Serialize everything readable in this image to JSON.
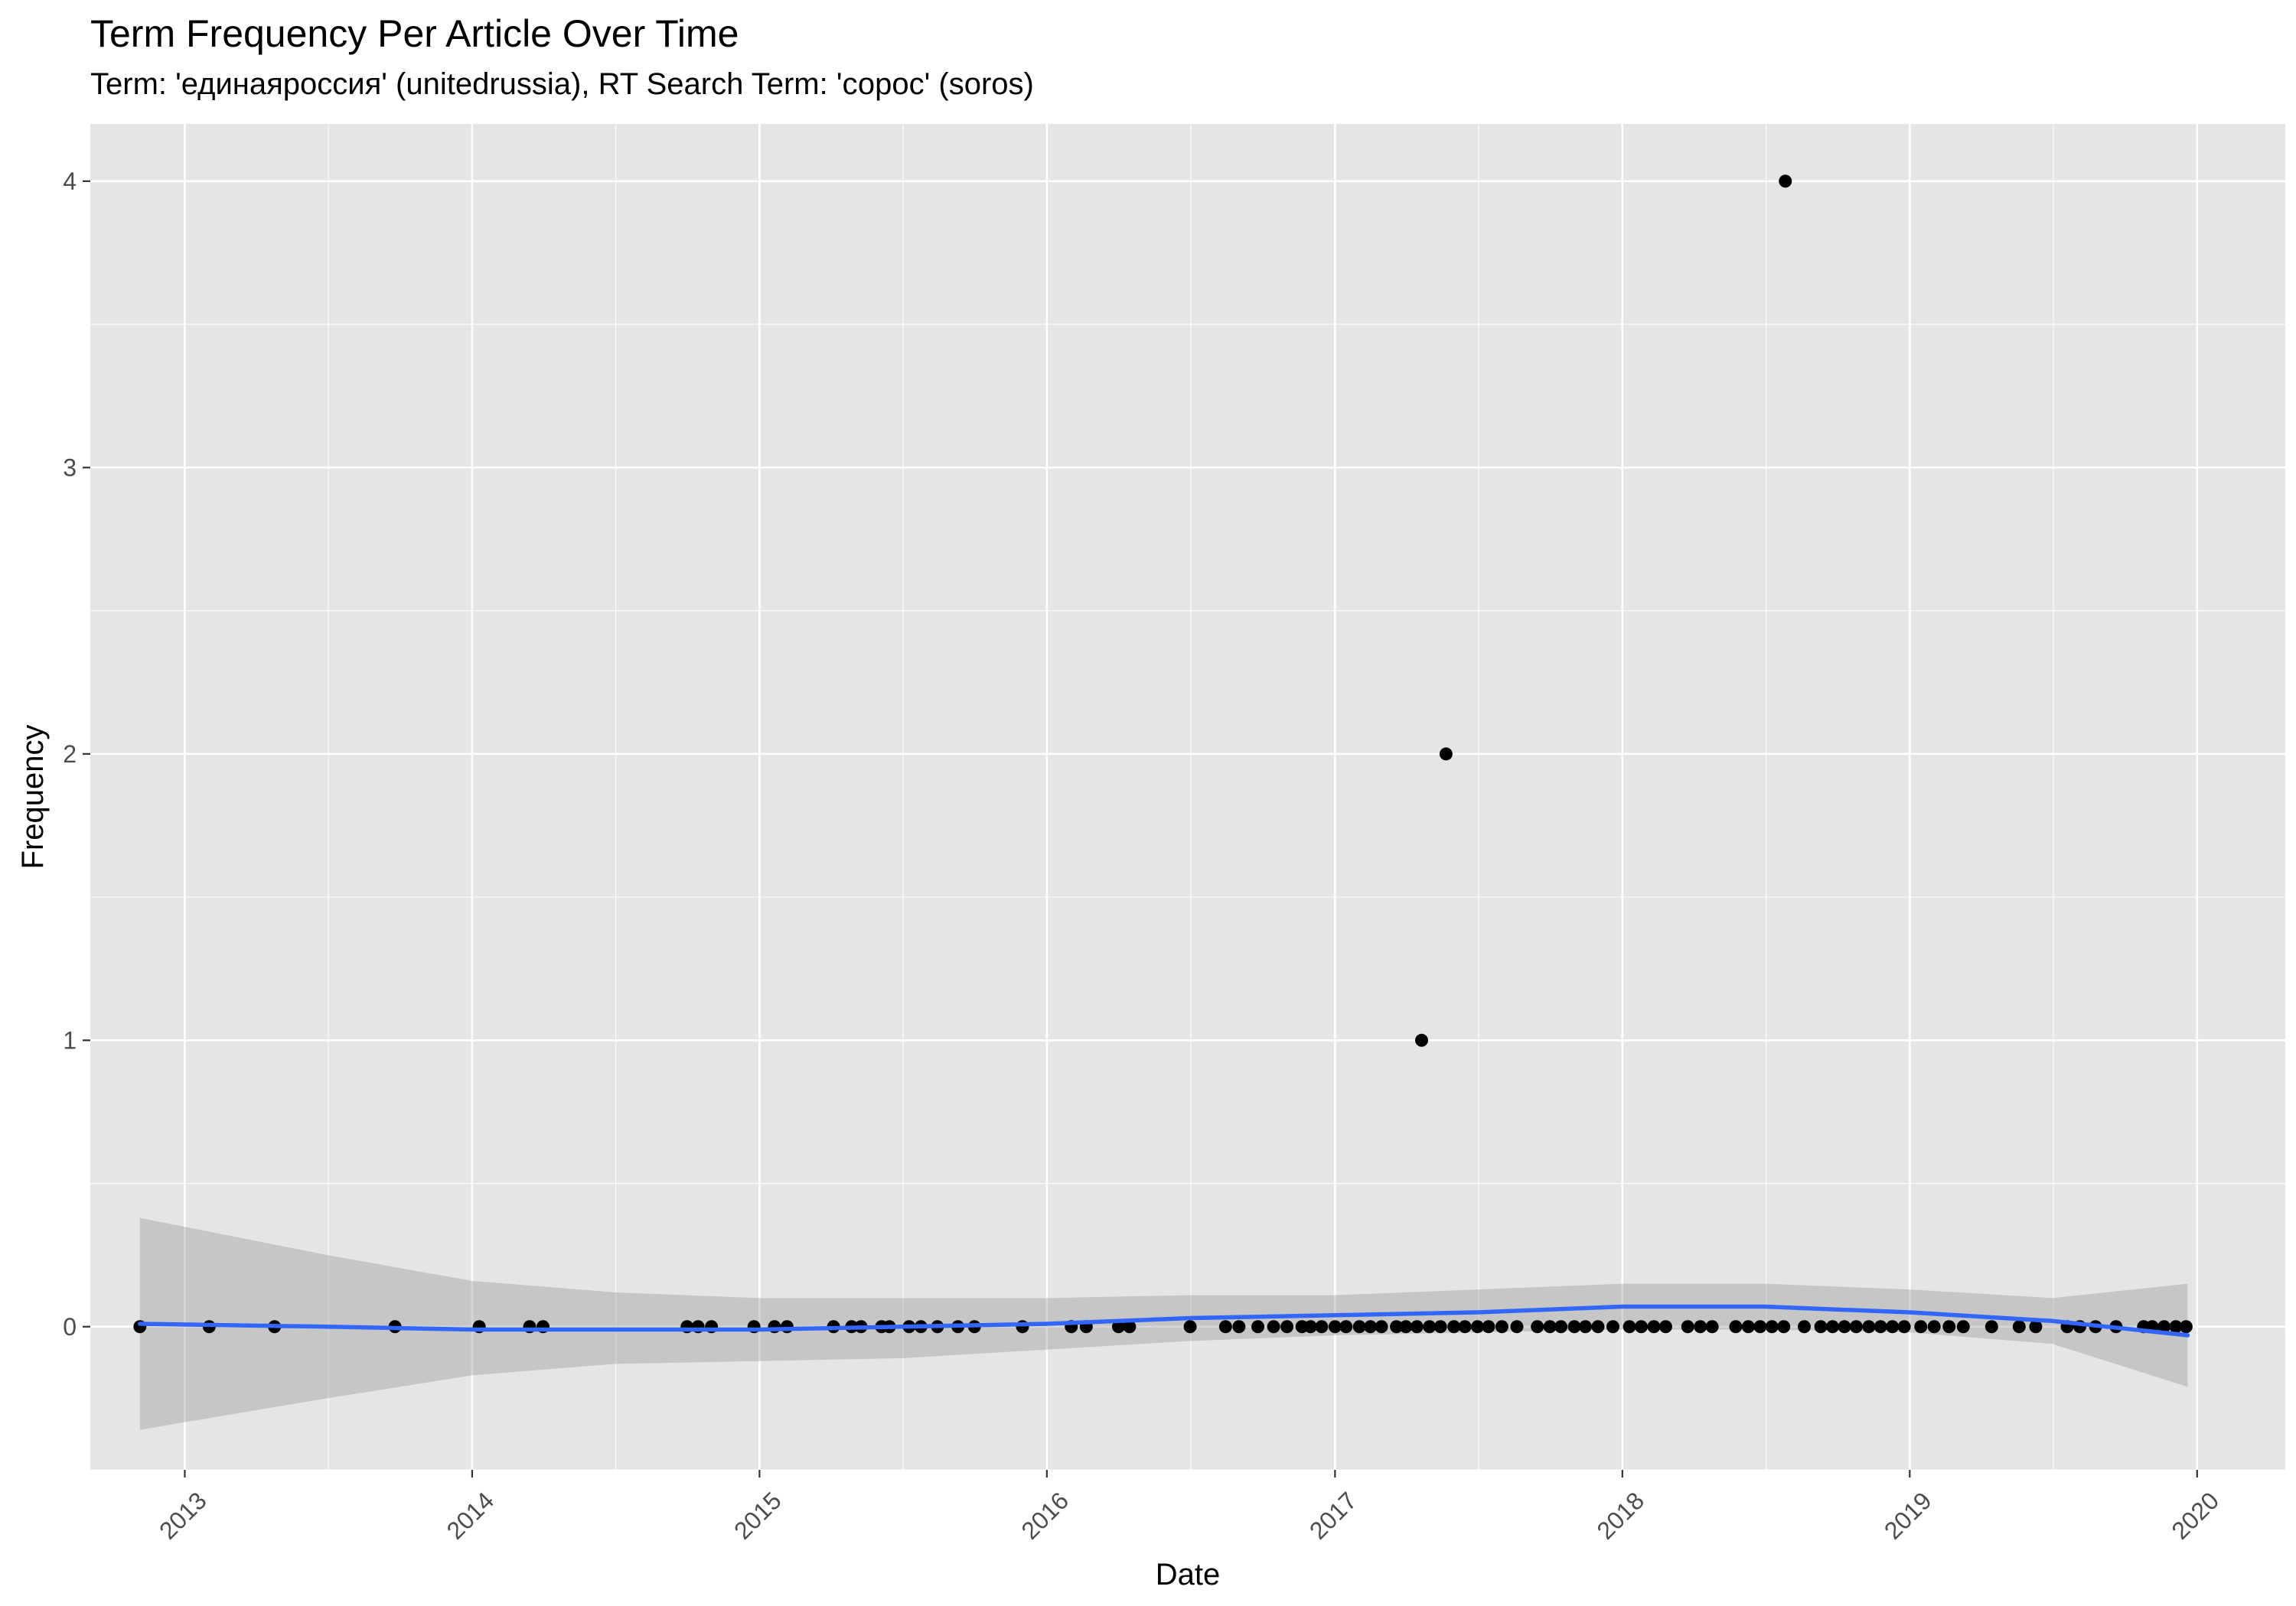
{
  "chart_data": {
    "type": "scatter",
    "title": "Term Frequency Per Article Over Time",
    "subtitle": "Term: 'единаяроссия' (unitedrussia), RT Search Term: 'сорос' (soros)",
    "xlabel": "Date",
    "ylabel": "Frequency",
    "x_axis": {
      "type": "date",
      "range": [
        "2012-09-03",
        "2020-04-22"
      ],
      "ticks": [
        "2013-01-01",
        "2014-01-01",
        "2015-01-01",
        "2016-01-01",
        "2017-01-01",
        "2018-01-01",
        "2019-01-01",
        "2020-01-01"
      ],
      "tick_labels": [
        "2013",
        "2014",
        "2015",
        "2016",
        "2017",
        "2018",
        "2019",
        "2020"
      ]
    },
    "y_axis": {
      "range": [
        -0.5,
        4.2
      ],
      "ticks": [
        0,
        1,
        2,
        3,
        4
      ],
      "tick_labels": [
        "0",
        "1",
        "2",
        "3",
        "4"
      ]
    },
    "grid": true,
    "legend": "none",
    "colors": {
      "panel_background": "#e5e5e5",
      "grid": "#ffffff",
      "points": "#000000",
      "smooth_line": "#3366ff",
      "confidence_band": "#999999"
    },
    "series": [
      {
        "type": "points",
        "points": [
          {
            "x": "2012-11-05",
            "y": 0
          },
          {
            "x": "2013-02-01",
            "y": 0
          },
          {
            "x": "2013-04-25",
            "y": 0
          },
          {
            "x": "2013-09-25",
            "y": 0
          },
          {
            "x": "2014-01-10",
            "y": 0
          },
          {
            "x": "2014-03-15",
            "y": 0
          },
          {
            "x": "2014-04-01",
            "y": 0
          },
          {
            "x": "2014-10-01",
            "y": 0
          },
          {
            "x": "2014-10-15",
            "y": 0
          },
          {
            "x": "2014-11-01",
            "y": 0
          },
          {
            "x": "2014-12-25",
            "y": 0
          },
          {
            "x": "2015-01-20",
            "y": 0
          },
          {
            "x": "2015-02-05",
            "y": 0
          },
          {
            "x": "2015-04-05",
            "y": 0
          },
          {
            "x": "2015-04-28",
            "y": 0
          },
          {
            "x": "2015-05-10",
            "y": 0
          },
          {
            "x": "2015-06-05",
            "y": 0
          },
          {
            "x": "2015-06-15",
            "y": 0
          },
          {
            "x": "2015-07-10",
            "y": 0
          },
          {
            "x": "2015-07-25",
            "y": 0
          },
          {
            "x": "2015-08-15",
            "y": 0
          },
          {
            "x": "2015-09-10",
            "y": 0
          },
          {
            "x": "2015-10-01",
            "y": 0
          },
          {
            "x": "2015-12-01",
            "y": 0
          },
          {
            "x": "2016-02-01",
            "y": 0
          },
          {
            "x": "2016-02-20",
            "y": 0
          },
          {
            "x": "2016-04-01",
            "y": 0
          },
          {
            "x": "2016-04-15",
            "y": 0
          },
          {
            "x": "2016-07-01",
            "y": 0
          },
          {
            "x": "2016-08-15",
            "y": 0
          },
          {
            "x": "2016-09-01",
            "y": 0
          },
          {
            "x": "2016-09-25",
            "y": 0
          },
          {
            "x": "2016-10-15",
            "y": 0
          },
          {
            "x": "2016-11-01",
            "y": 0
          },
          {
            "x": "2016-11-20",
            "y": 0
          },
          {
            "x": "2016-12-01",
            "y": 0
          },
          {
            "x": "2016-12-15",
            "y": 0
          },
          {
            "x": "2017-01-01",
            "y": 0
          },
          {
            "x": "2017-01-15",
            "y": 0
          },
          {
            "x": "2017-02-01",
            "y": 0
          },
          {
            "x": "2017-02-15",
            "y": 0
          },
          {
            "x": "2017-03-01",
            "y": 0
          },
          {
            "x": "2017-03-20",
            "y": 0
          },
          {
            "x": "2017-04-01",
            "y": 0
          },
          {
            "x": "2017-04-15",
            "y": 0
          },
          {
            "x": "2017-04-21",
            "y": 1
          },
          {
            "x": "2017-05-01",
            "y": 0
          },
          {
            "x": "2017-05-15",
            "y": 0
          },
          {
            "x": "2017-05-22",
            "y": 2
          },
          {
            "x": "2017-06-01",
            "y": 0
          },
          {
            "x": "2017-06-15",
            "y": 0
          },
          {
            "x": "2017-07-01",
            "y": 0
          },
          {
            "x": "2017-07-15",
            "y": 0
          },
          {
            "x": "2017-08-01",
            "y": 0
          },
          {
            "x": "2017-08-20",
            "y": 0
          },
          {
            "x": "2017-09-15",
            "y": 0
          },
          {
            "x": "2017-10-01",
            "y": 0
          },
          {
            "x": "2017-10-15",
            "y": 0
          },
          {
            "x": "2017-11-01",
            "y": 0
          },
          {
            "x": "2017-11-15",
            "y": 0
          },
          {
            "x": "2017-12-01",
            "y": 0
          },
          {
            "x": "2017-12-20",
            "y": 0
          },
          {
            "x": "2018-01-10",
            "y": 0
          },
          {
            "x": "2018-01-25",
            "y": 0
          },
          {
            "x": "2018-02-10",
            "y": 0
          },
          {
            "x": "2018-02-25",
            "y": 0
          },
          {
            "x": "2018-03-25",
            "y": 0
          },
          {
            "x": "2018-04-10",
            "y": 0
          },
          {
            "x": "2018-04-25",
            "y": 0
          },
          {
            "x": "2018-05-25",
            "y": 0
          },
          {
            "x": "2018-06-10",
            "y": 0
          },
          {
            "x": "2018-06-25",
            "y": 0
          },
          {
            "x": "2018-07-10",
            "y": 0
          },
          {
            "x": "2018-07-25",
            "y": 0
          },
          {
            "x": "2018-07-27",
            "y": 4
          },
          {
            "x": "2018-08-20",
            "y": 0
          },
          {
            "x": "2018-09-10",
            "y": 0
          },
          {
            "x": "2018-09-25",
            "y": 0
          },
          {
            "x": "2018-10-10",
            "y": 0
          },
          {
            "x": "2018-10-25",
            "y": 0
          },
          {
            "x": "2018-11-10",
            "y": 0
          },
          {
            "x": "2018-11-25",
            "y": 0
          },
          {
            "x": "2018-12-10",
            "y": 0
          },
          {
            "x": "2018-12-25",
            "y": 0
          },
          {
            "x": "2019-01-15",
            "y": 0
          },
          {
            "x": "2019-02-01",
            "y": 0
          },
          {
            "x": "2019-02-20",
            "y": 0
          },
          {
            "x": "2019-03-10",
            "y": 0
          },
          {
            "x": "2019-04-15",
            "y": 0
          },
          {
            "x": "2019-05-20",
            "y": 0
          },
          {
            "x": "2019-06-10",
            "y": 0
          },
          {
            "x": "2019-07-20",
            "y": 0
          },
          {
            "x": "2019-08-05",
            "y": 0
          },
          {
            "x": "2019-08-25",
            "y": 0
          },
          {
            "x": "2019-09-20",
            "y": 0
          },
          {
            "x": "2019-10-25",
            "y": 0
          },
          {
            "x": "2019-11-05",
            "y": 0
          },
          {
            "x": "2019-11-20",
            "y": 0
          },
          {
            "x": "2019-12-05",
            "y": 0
          },
          {
            "x": "2019-12-18",
            "y": 0
          }
        ]
      },
      {
        "type": "smooth",
        "points": [
          {
            "x": "2012-11-05",
            "y": 0.01,
            "lower": -0.36,
            "upper": 0.38
          },
          {
            "x": "2013-07-01",
            "y": 0.0,
            "lower": -0.25,
            "upper": 0.25
          },
          {
            "x": "2014-01-01",
            "y": -0.01,
            "lower": -0.17,
            "upper": 0.16
          },
          {
            "x": "2014-07-01",
            "y": -0.01,
            "lower": -0.13,
            "upper": 0.12
          },
          {
            "x": "2015-01-01",
            "y": -0.01,
            "lower": -0.12,
            "upper": 0.1
          },
          {
            "x": "2015-07-01",
            "y": 0.0,
            "lower": -0.11,
            "upper": 0.1
          },
          {
            "x": "2016-01-01",
            "y": 0.01,
            "lower": -0.08,
            "upper": 0.1
          },
          {
            "x": "2016-07-01",
            "y": 0.03,
            "lower": -0.05,
            "upper": 0.11
          },
          {
            "x": "2017-01-01",
            "y": 0.04,
            "lower": -0.03,
            "upper": 0.11
          },
          {
            "x": "2017-07-01",
            "y": 0.05,
            "lower": -0.02,
            "upper": 0.13
          },
          {
            "x": "2018-01-01",
            "y": 0.07,
            "lower": -0.01,
            "upper": 0.15
          },
          {
            "x": "2018-07-01",
            "y": 0.07,
            "lower": -0.01,
            "upper": 0.15
          },
          {
            "x": "2019-01-01",
            "y": 0.05,
            "lower": -0.02,
            "upper": 0.13
          },
          {
            "x": "2019-07-01",
            "y": 0.02,
            "lower": -0.06,
            "upper": 0.1
          },
          {
            "x": "2019-12-20",
            "y": -0.03,
            "lower": -0.21,
            "upper": 0.15
          }
        ]
      }
    ]
  }
}
